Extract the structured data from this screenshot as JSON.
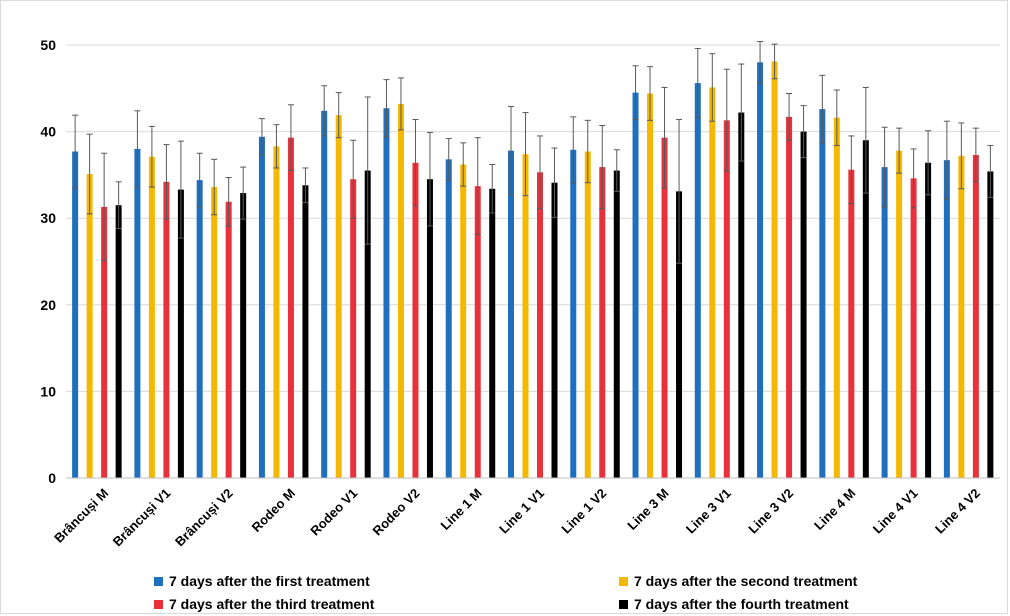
{
  "chart_data": {
    "type": "bar",
    "title": "",
    "xlabel": "",
    "ylabel": "",
    "ylim": [
      0,
      50
    ],
    "yticks": [
      0,
      10,
      20,
      30,
      40,
      50
    ],
    "grid": true,
    "legend_position": "bottom",
    "categories": [
      "Brâncuși M",
      "Brâncuși V1",
      "Brâncuși V2",
      "Rodeo M",
      "Rodeo V1",
      "Rodeo V2",
      "Line 1 M",
      "Line 1 V1",
      "Line 1 V2",
      "Line 3 M",
      "Line 3 V1",
      "Line 3 V2",
      "Line 4 M",
      "Line 4 V1",
      "Line 4 V2"
    ],
    "series": [
      {
        "name": "7 days after the first treatment",
        "color": "#1f6fbf",
        "values": [
          37.7,
          38.0,
          34.4,
          39.4,
          42.4,
          42.7,
          36.8,
          37.8,
          37.9,
          44.5,
          45.6,
          48.0,
          42.6,
          35.9,
          36.7
        ],
        "errors": [
          4.2,
          4.4,
          3.1,
          2.1,
          2.9,
          3.3,
          2.4,
          5.1,
          3.8,
          3.1,
          4.0,
          2.4,
          3.9,
          4.6,
          4.5
        ]
      },
      {
        "name": "7 days after the second treatment",
        "color": "#f5b800",
        "values": [
          35.1,
          37.1,
          33.6,
          38.3,
          41.9,
          43.2,
          36.2,
          37.4,
          37.7,
          44.4,
          45.1,
          48.1,
          41.6,
          37.8,
          37.2
        ],
        "errors": [
          4.6,
          3.5,
          3.2,
          2.5,
          2.6,
          3.0,
          2.5,
          4.8,
          3.6,
          3.1,
          3.9,
          2.0,
          3.2,
          2.6,
          3.8
        ]
      },
      {
        "name": "7 days after the third treatment",
        "color": "#e8313a",
        "values": [
          31.3,
          34.2,
          31.9,
          39.3,
          34.5,
          36.4,
          33.7,
          35.3,
          35.9,
          39.3,
          41.3,
          41.7,
          35.6,
          34.6,
          37.3
        ],
        "errors": [
          6.2,
          4.3,
          2.8,
          3.8,
          4.5,
          5.0,
          5.6,
          4.2,
          4.8,
          5.8,
          5.9,
          2.7,
          3.9,
          3.4,
          3.1
        ]
      },
      {
        "name": "7 days after the fourth treatment",
        "color": "#000000",
        "values": [
          31.5,
          33.3,
          32.9,
          33.8,
          35.5,
          34.5,
          33.4,
          34.1,
          35.5,
          33.1,
          42.2,
          40.0,
          39.0,
          36.4,
          35.4
        ],
        "errors": [
          2.7,
          5.6,
          3.0,
          2.0,
          8.5,
          5.4,
          2.8,
          4.0,
          2.4,
          8.3,
          5.6,
          3.0,
          6.1,
          3.7,
          3.0
        ]
      }
    ]
  }
}
